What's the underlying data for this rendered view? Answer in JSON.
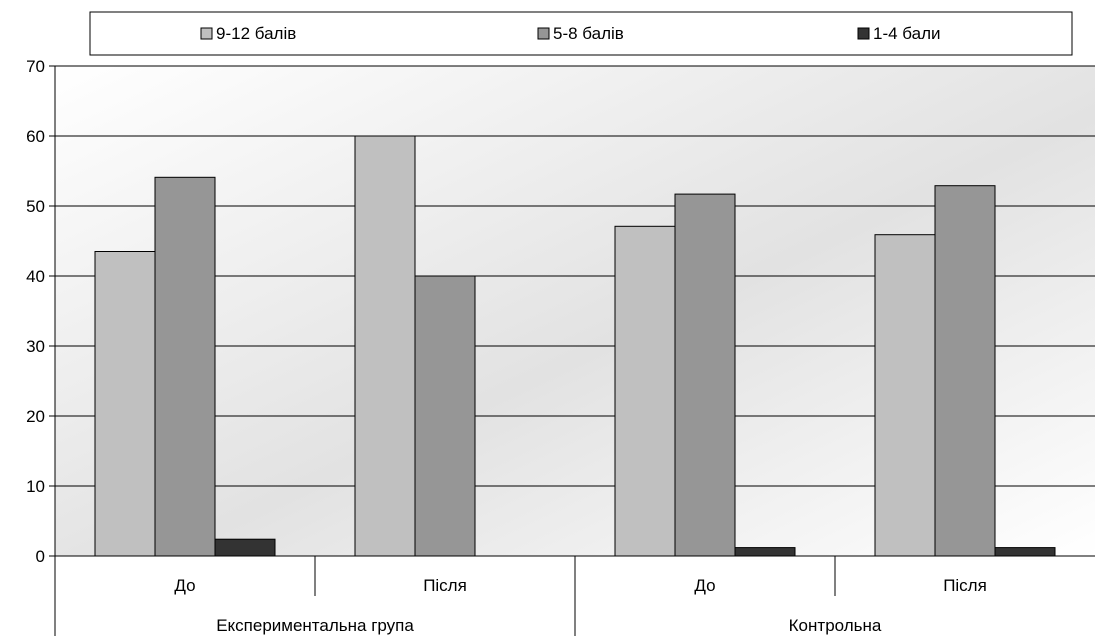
{
  "chart_data": {
    "type": "bar",
    "title": "",
    "xlabel": "",
    "ylabel": "",
    "ylim": [
      0,
      70
    ],
    "y_ticks": [
      0,
      10,
      20,
      30,
      40,
      50,
      60,
      70
    ],
    "grid": true,
    "legend_placement": "top",
    "groups": [
      {
        "label": "Експериментальна група",
        "categories": [
          "До",
          "Після"
        ]
      },
      {
        "label": "Контрольна",
        "categories": [
          "До",
          "Після"
        ]
      }
    ],
    "categories": [
      "До",
      "Після",
      "До",
      "Після"
    ],
    "series": [
      {
        "name": "9-12 балів",
        "color": "#c0c0c0",
        "values": [
          43.5,
          60,
          47.1,
          45.9
        ]
      },
      {
        "name": "5-8 балів",
        "color": "#969696",
        "values": [
          54.1,
          40,
          51.7,
          52.9
        ]
      },
      {
        "name": "1-4 бали",
        "color": "#333333",
        "values": [
          2.4,
          0,
          1.2,
          1.2
        ]
      }
    ]
  }
}
